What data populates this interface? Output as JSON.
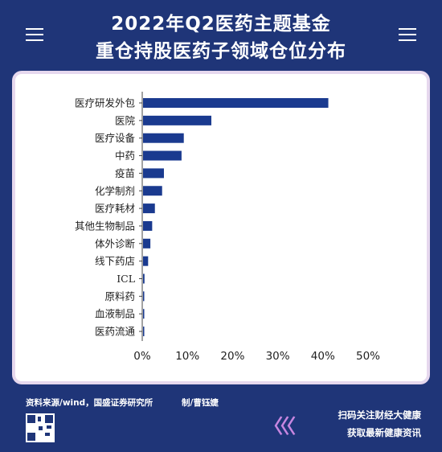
{
  "header": {
    "title_line1": "2022年Q2医药主题基金",
    "title_line2": "重仓持股医药子领域仓位分布"
  },
  "chart_data": {
    "type": "bar",
    "orientation": "horizontal",
    "categories": [
      "医疗研发外包",
      "医院",
      "医疗设备",
      "中药",
      "疫苗",
      "化学制剂",
      "医疗耗材",
      "其他生物制品",
      "体外诊断",
      "线下药店",
      "ICL",
      "原料药",
      "血液制品",
      "医药流通"
    ],
    "values": [
      41.2,
      15.3,
      9.2,
      8.7,
      4.8,
      4.4,
      2.8,
      2.2,
      1.8,
      1.3,
      0.5,
      0.4,
      0.4,
      0.3
    ],
    "xlim": [
      0,
      50
    ],
    "xticks": [
      "0%",
      "10%",
      "20%",
      "30%",
      "40%",
      "50%"
    ],
    "bar_color": "#1a3a8f",
    "grid": false
  },
  "footer": {
    "source": "资料来源/wind，国盛证券研究所",
    "author": "制/曹钰婕",
    "cta_line1": "扫码关注财经大健康",
    "cta_line2": "获取最新健康资讯",
    "chevrons": "〈〈〈"
  }
}
